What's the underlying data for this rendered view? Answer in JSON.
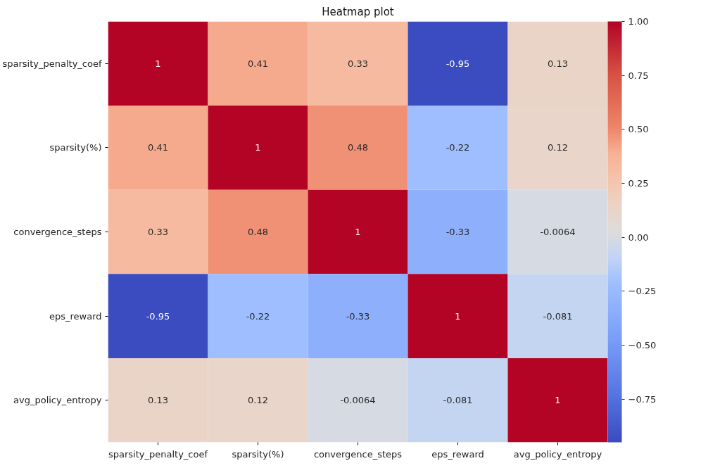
{
  "chart_data": {
    "type": "heatmap",
    "title": "Heatmap plot",
    "categories": [
      "sparsity_penalty_coef",
      "sparsity(%)",
      "convergence_steps",
      "eps_reward",
      "avg_policy_entropy"
    ],
    "y_categories": [
      "sparsity_penalty_coef",
      "sparsity(%)",
      "convergence_steps",
      "eps_reward",
      "avg_policy_entropy"
    ],
    "cells": [
      [
        1,
        0.41,
        0.33,
        -0.95,
        0.13
      ],
      [
        0.41,
        1,
        0.48,
        -0.22,
        0.12
      ],
      [
        0.33,
        0.48,
        1,
        -0.33,
        -0.0064
      ],
      [
        -0.95,
        -0.22,
        -0.33,
        1,
        -0.081
      ],
      [
        0.13,
        0.12,
        -0.0064,
        -0.081,
        1
      ]
    ],
    "data_labels": true,
    "clim": [
      -0.95,
      1.0
    ],
    "cticks": [
      {
        "value": -0.75,
        "label": "−0.75"
      },
      {
        "value": -0.5,
        "label": "−0.50"
      },
      {
        "value": -0.25,
        "label": "−0.25"
      },
      {
        "value": 0,
        "label": "0.00"
      },
      {
        "value": 0.25,
        "label": "0.25"
      },
      {
        "value": 0.5,
        "label": "0.50"
      },
      {
        "value": 0.75,
        "label": "0.75"
      },
      {
        "value": 1.0,
        "label": "1.00"
      }
    ]
  }
}
